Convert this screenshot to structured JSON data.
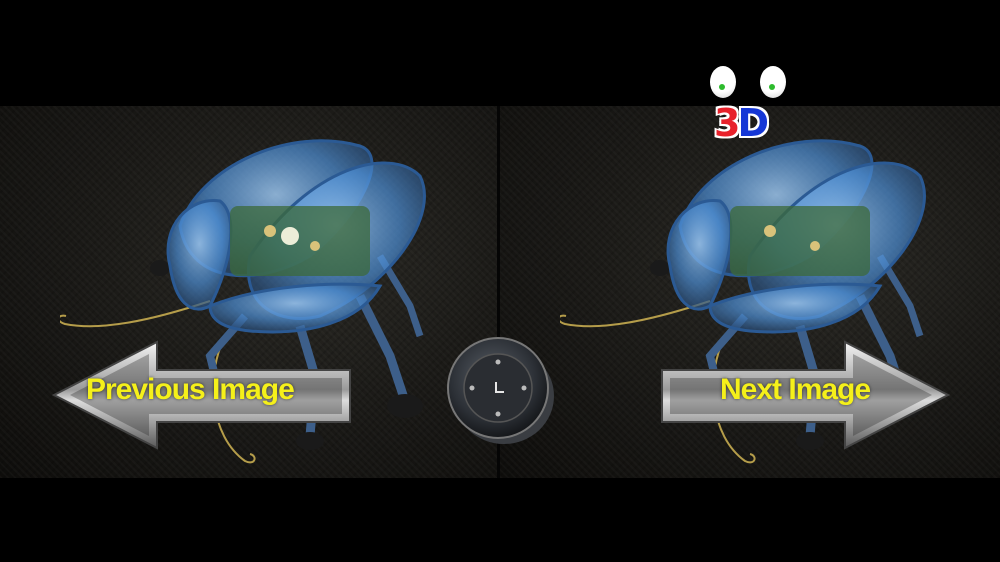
{
  "viewer": {
    "prev_label": "Previous Image",
    "next_label": "Next Image",
    "center_control_icon": "clock-icon"
  },
  "logo": {
    "text_3": "3",
    "text_d": "D",
    "colors": {
      "three": "#e8212b",
      "d": "#1537d6",
      "eyes": "#ffffff",
      "pupils": "#2dbb2d"
    }
  },
  "colors": {
    "background": "#000000",
    "label": "#f5f01a",
    "robot_shell": "#4d8fd6"
  }
}
